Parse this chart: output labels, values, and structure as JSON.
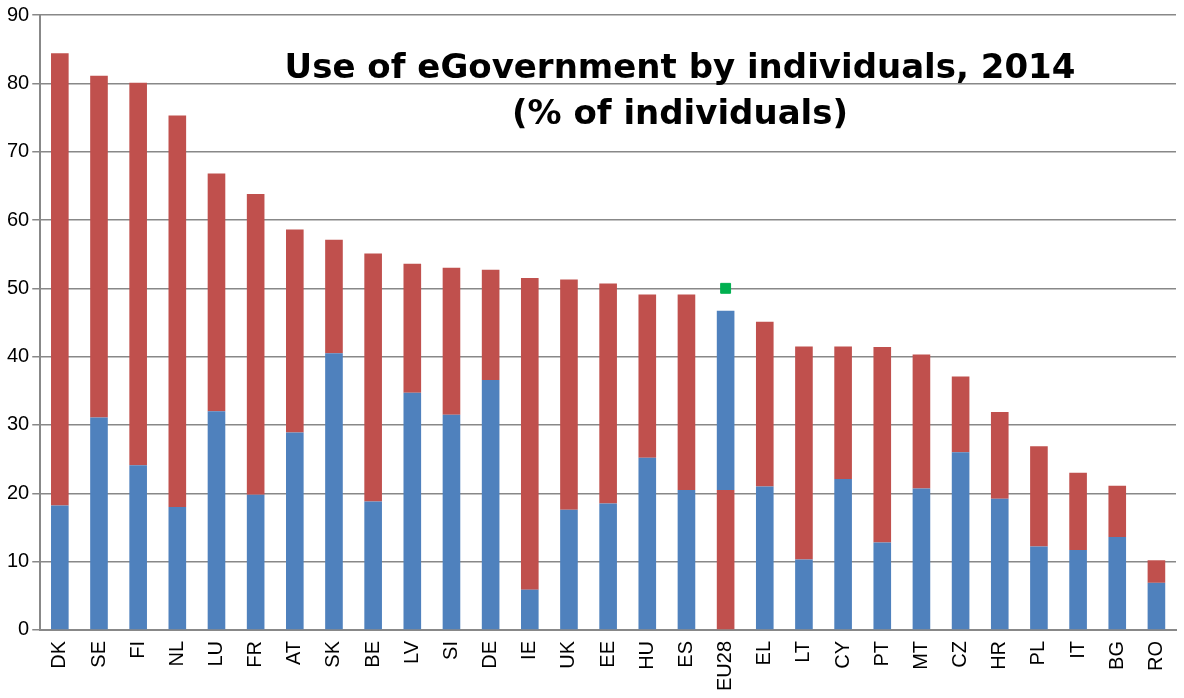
{
  "chart_data": {
    "type": "bar",
    "title": "Use of eGovernment by individuals, 2014\n(% of individuals)",
    "stacked": true,
    "grid": "y",
    "legend": false,
    "categories": [
      "DK",
      "SE",
      "FI",
      "NL",
      "LU",
      "FR",
      "AT",
      "SK",
      "BE",
      "LV",
      "SI",
      "DE",
      "IE",
      "UK",
      "EE",
      "HU",
      "ES",
      "EU28",
      "EL",
      "LT",
      "CY",
      "PT",
      "MT",
      "CZ",
      "HR",
      "PL",
      "IT",
      "BG",
      "RO"
    ],
    "ylim": [
      0,
      90
    ],
    "yticks": [
      0,
      10,
      20,
      30,
      40,
      50,
      60,
      70,
      80,
      90
    ],
    "series": [
      {
        "color": "#4f81bd",
        "values": [
          18.2,
          31.1,
          24.1,
          18.0,
          32.0,
          19.8,
          28.9,
          40.5,
          18.8,
          34.7,
          31.5,
          36.6,
          5.9,
          17.6,
          18.5,
          25.2,
          20.5,
          null,
          21.0,
          10.3,
          22.1,
          12.8,
          20.7,
          26.0,
          19.2,
          12.2,
          11.7,
          13.6,
          6.9
        ]
      },
      {
        "color": "#c0504d",
        "values": [
          66.2,
          50.0,
          56.0,
          57.3,
          34.8,
          44.0,
          29.7,
          16.6,
          36.3,
          18.9,
          21.5,
          16.1,
          45.6,
          33.7,
          32.2,
          23.9,
          28.6,
          20.5,
          24.1,
          31.2,
          19.4,
          28.6,
          19.6,
          11.1,
          12.7,
          14.7,
          11.3,
          7.5,
          3.3
        ]
      },
      {
        "color": "#4f81bd",
        "values": [
          null,
          null,
          null,
          null,
          null,
          null,
          null,
          null,
          null,
          null,
          null,
          null,
          null,
          null,
          null,
          null,
          null,
          26.2,
          null,
          null,
          null,
          null,
          null,
          null,
          null,
          null,
          null,
          null,
          null
        ]
      },
      {
        "type": "scatter",
        "color": "#00b050",
        "marker": "square",
        "x": [
          "EU28"
        ],
        "values": [
          50
        ]
      }
    ]
  }
}
